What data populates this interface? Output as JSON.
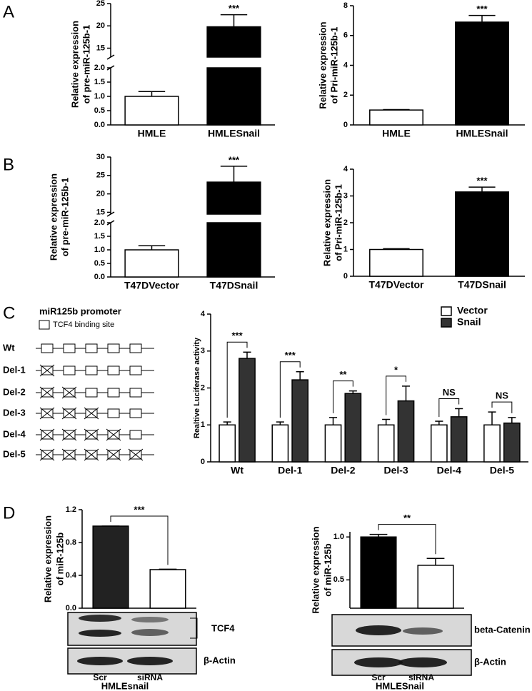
{
  "panels": [
    "A",
    "B",
    "C",
    "D"
  ],
  "chart_data": [
    {
      "type": "bar",
      "ylabel": [
        "Relative expression",
        "of pre-miR-125b-1"
      ],
      "categories": [
        "HMLE",
        "HMLESnail"
      ],
      "values": [
        1.0,
        19.8
      ],
      "errors": [
        0.17,
        2.7
      ],
      "colors": [
        "#ffffff",
        "#000000"
      ],
      "ylim": [
        0,
        25
      ],
      "ybreak": [
        2,
        13
      ],
      "yticks": [
        {
          "value": 0,
          "label": "0.0"
        },
        {
          "value": 0.5,
          "label": "0.5"
        },
        {
          "value": 1,
          "label": "1.0"
        },
        {
          "value": 1.5,
          "label": "1.5"
        },
        {
          "value": 2,
          "label": "2.0"
        },
        15,
        20,
        25
      ],
      "annotations": [
        {
          "label": "***",
          "category": 1
        }
      ]
    },
    {
      "type": "bar",
      "ylabel": [
        "Relative expression",
        "of Pri-miR-125b-1"
      ],
      "categories": [
        "HMLE",
        "HMLESnail"
      ],
      "values": [
        1.0,
        6.9
      ],
      "errors": [
        0.03,
        0.45
      ],
      "colors": [
        "#ffffff",
        "#000000"
      ],
      "ylim": [
        0,
        8
      ],
      "yticks": [
        0,
        2,
        4,
        6,
        8
      ],
      "annotations": [
        {
          "label": "***",
          "category": 1
        }
      ]
    },
    {
      "type": "bar",
      "ylabel": [
        "Relative expression",
        "of pre-miR-125b-1"
      ],
      "categories": [
        "T47DVector",
        "T47DSnail"
      ],
      "values": [
        1.0,
        23.2
      ],
      "errors": [
        0.15,
        4.3
      ],
      "colors": [
        "#ffffff",
        "#000000"
      ],
      "ylim": [
        0,
        30
      ],
      "ybreak": [
        2,
        14.5
      ],
      "yticks": [
        {
          "value": 0,
          "label": "0.0"
        },
        {
          "value": 0.5,
          "label": "0.5"
        },
        {
          "value": 1,
          "label": "1.0"
        },
        {
          "value": 1.5,
          "label": "1.5"
        },
        {
          "value": 2,
          "label": "2.0"
        },
        15,
        20,
        25,
        30
      ],
      "annotations": [
        {
          "label": "***",
          "category": 1
        }
      ]
    },
    {
      "type": "bar",
      "ylabel": [
        "Relative expression",
        "of Pri-miR-125b-1"
      ],
      "categories": [
        "T47DVector",
        "T47DSnail"
      ],
      "values": [
        1.0,
        3.15
      ],
      "errors": [
        0.03,
        0.18
      ],
      "colors": [
        "#ffffff",
        "#000000"
      ],
      "ylim": [
        0,
        4
      ],
      "yticks": [
        0,
        1,
        2,
        3,
        4
      ],
      "annotations": [
        {
          "label": "***",
          "category": 1
        }
      ]
    },
    {
      "type": "bar",
      "ylabel": "Realtive  Luciferase activity",
      "categories": [
        "Wt",
        "Del-1",
        "Del-2",
        "Del-3",
        "Del-4",
        "Del-5"
      ],
      "series": [
        {
          "name": "Vector",
          "color": "#ffffff",
          "values": [
            1.0,
            1.0,
            1.0,
            1.0,
            1.0,
            1.0
          ],
          "errors": [
            0.08,
            0.08,
            0.2,
            0.15,
            0.1,
            0.35
          ]
        },
        {
          "name": "Snail",
          "color": "#333333",
          "values": [
            2.8,
            2.22,
            1.85,
            1.65,
            1.22,
            1.05
          ],
          "errors": [
            0.17,
            0.22,
            0.07,
            0.4,
            0.22,
            0.15
          ]
        }
      ],
      "ylim": [
        0,
        4
      ],
      "yticks": [
        0,
        1,
        2,
        3,
        4
      ],
      "legend": "top-right",
      "annotations": [
        {
          "label": "***",
          "category": 0
        },
        {
          "label": "***",
          "category": 1
        },
        {
          "label": "**",
          "category": 2
        },
        {
          "label": "*",
          "category": 3
        },
        {
          "label": "NS",
          "category": 4
        },
        {
          "label": "NS",
          "category": 5
        }
      ]
    },
    {
      "type": "bar",
      "ylabel": [
        "Relative expression",
        "of miR-125b"
      ],
      "categories": [
        null,
        null
      ],
      "values": [
        1.0,
        0.47
      ],
      "errors": [
        0,
        0.005
      ],
      "colors": [
        "#222222",
        "#ffffff"
      ],
      "ylim": [
        0,
        1.2
      ],
      "yticks": [
        {
          "value": 0,
          "label": "0.0"
        },
        0.4,
        0.8,
        1.2
      ],
      "annotations": [
        {
          "label": "***"
        }
      ]
    },
    {
      "type": "bar",
      "ylabel": [
        "Relative expression",
        "of miR-125b"
      ],
      "categories": [
        null,
        null
      ],
      "values": [
        1.0,
        0.67
      ],
      "errors": [
        0.03,
        0.08
      ],
      "colors": [
        "#000000",
        "#ffffff"
      ],
      "ylim": [
        0.17,
        1.06
      ],
      "yticks": [
        {
          "value": 0.5,
          "label": "0.5"
        },
        {
          "value": 1,
          "label": "1.0"
        }
      ],
      "annotations": [
        {
          "label": "**"
        }
      ]
    }
  ],
  "promoter": {
    "title": "miR125b promoter",
    "legend": "TCF4 binding site",
    "sites": 5,
    "constructs": [
      {
        "label": "Wt",
        "deleted": 0
      },
      {
        "label": "Del-1",
        "deleted": 1
      },
      {
        "label": "Del-2",
        "deleted": 2
      },
      {
        "label": "Del-3",
        "deleted": 3
      },
      {
        "label": "Del-4",
        "deleted": 4
      },
      {
        "label": "Del-5",
        "deleted": 5
      }
    ]
  },
  "blots": [
    {
      "bands": [
        "TCF4",
        "β-Actin"
      ],
      "lanes": [
        "Scr",
        "siRNA"
      ],
      "cell_line": "HMLEsnail"
    },
    {
      "bands": [
        "beta-Catenin",
        "β-Actin"
      ],
      "lanes": [
        "Scr",
        "siRNA"
      ],
      "cell_line": "HMLESnail"
    }
  ]
}
